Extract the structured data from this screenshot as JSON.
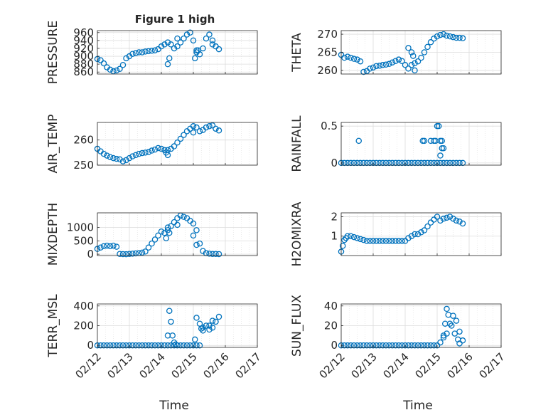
{
  "figure": {
    "title": "Figure 1 high",
    "xtick_labels": [
      "02/12",
      "02/13",
      "02/14",
      "02/15",
      "02/16",
      "02/17"
    ],
    "xlabel": "Time",
    "colors": {
      "marker": "#0072BD",
      "axis": "#262626",
      "grid": "#dcdcdc",
      "background": "#ffffff"
    }
  },
  "chart_data": [
    {
      "type": "scatter",
      "ylabel": "PRESSURE",
      "ylim": [
        855,
        965
      ],
      "yticks": [
        860,
        880,
        900,
        920,
        940,
        960
      ],
      "xlim": [
        0,
        5
      ],
      "minor_x_grid": true,
      "grid": true,
      "x": [
        0,
        0.1,
        0.2,
        0.3,
        0.4,
        0.5,
        0.6,
        0.7,
        0.8,
        0.9,
        1.0,
        1.1,
        1.2,
        1.3,
        1.4,
        1.5,
        1.6,
        1.7,
        1.8,
        1.9,
        2.0,
        2.1,
        2.2,
        2.3,
        2.4,
        2.5,
        2.6,
        2.7,
        2.8,
        2.9,
        3.0,
        3.1,
        3.2,
        3.3,
        3.4,
        3.5,
        3.6,
        3.7,
        3.8
      ],
      "y": [
        893,
        890,
        882,
        872,
        866,
        862,
        864,
        868,
        878,
        895,
        900,
        906,
        908,
        910,
        910,
        912,
        913,
        914,
        915,
        918,
        925,
        930,
        935,
        930,
        920,
        925,
        935,
        945,
        955,
        960,
        940,
        915,
        905,
        920,
        945,
        955,
        940,
        925,
        918
      ],
      "extra_points": {
        "x": [
          2.2,
          2.25,
          2.5,
          3.05,
          3.1,
          3.15,
          3.6
        ],
        "y": [
          880,
          895,
          945,
          895,
          910,
          915,
          930
        ]
      }
    },
    {
      "type": "scatter",
      "ylabel": "THETA",
      "ylim": [
        259,
        271
      ],
      "yticks": [
        260,
        265,
        270
      ],
      "xlim": [
        0,
        5
      ],
      "minor_x_grid": true,
      "grid": true,
      "x": [
        0,
        0.1,
        0.2,
        0.3,
        0.4,
        0.5,
        0.6,
        0.7,
        0.8,
        0.9,
        1.0,
        1.1,
        1.2,
        1.3,
        1.4,
        1.5,
        1.6,
        1.7,
        1.8,
        1.9,
        2.0,
        2.1,
        2.2,
        2.3,
        2.4,
        2.5,
        2.6,
        2.7,
        2.8,
        2.9,
        3.0,
        3.1,
        3.2,
        3.3,
        3.4,
        3.5,
        3.6,
        3.7,
        3.8
      ],
      "y": [
        264.3,
        263.5,
        263.8,
        263.5,
        263.2,
        263.0,
        262.5,
        259.6,
        259.8,
        260.5,
        260.8,
        261.2,
        261.3,
        261.5,
        261.6,
        261.8,
        262.2,
        262.6,
        263.0,
        262.6,
        261.5,
        260.5,
        261.5,
        262.0,
        262.5,
        263.5,
        265.0,
        266.5,
        267.8,
        268.8,
        269.4,
        269.8,
        270.0,
        269.6,
        269.4,
        269.2,
        269.0,
        269.0,
        268.9
      ],
      "extra_points": {
        "x": [
          2.1,
          2.2,
          2.25,
          2.3
        ],
        "y": [
          266.2,
          265.0,
          264.0,
          260.0
        ]
      }
    },
    {
      "type": "scatter",
      "ylabel": "AIR_TEMP",
      "ylim": [
        250,
        267
      ],
      "yticks": [
        250,
        260
      ],
      "xlim": [
        0,
        5
      ],
      "minor_x_grid": true,
      "grid": true,
      "x": [
        0,
        0.1,
        0.2,
        0.3,
        0.4,
        0.5,
        0.6,
        0.7,
        0.8,
        0.9,
        1.0,
        1.1,
        1.2,
        1.3,
        1.4,
        1.5,
        1.6,
        1.7,
        1.8,
        1.9,
        2.0,
        2.1,
        2.2,
        2.3,
        2.4,
        2.5,
        2.6,
        2.7,
        2.8,
        2.9,
        3.0,
        3.1,
        3.2,
        3.3,
        3.4,
        3.5,
        3.6,
        3.7,
        3.8
      ],
      "y": [
        256.5,
        255.5,
        254.5,
        253.8,
        253.2,
        252.8,
        252.5,
        252.3,
        251.5,
        252.0,
        252.8,
        253.5,
        254.0,
        254.5,
        254.8,
        255.0,
        255.2,
        255.8,
        256.2,
        256.8,
        256.5,
        256.0,
        256.0,
        256.5,
        257.5,
        259.0,
        260.5,
        262.0,
        263.5,
        264.5,
        265.5,
        265.0,
        263.5,
        264.0,
        265.0,
        265.5,
        265.8,
        264.5,
        263.8
      ],
      "extra_points": {
        "x": [
          2.15,
          2.2,
          3.0
        ],
        "y": [
          255.0,
          254.0,
          263.0
        ]
      }
    },
    {
      "type": "scatter",
      "ylabel": "RAINFALL",
      "ylim": [
        -0.03,
        0.55
      ],
      "yticks": [
        0,
        0.5
      ],
      "xlim": [
        0,
        5
      ],
      "minor_x_grid": true,
      "grid": true,
      "x": [
        0,
        0.1,
        0.2,
        0.3,
        0.4,
        0.5,
        0.6,
        0.7,
        0.8,
        0.9,
        1.0,
        1.1,
        1.2,
        1.3,
        1.4,
        1.5,
        1.6,
        1.7,
        1.8,
        1.9,
        2.0,
        2.1,
        2.2,
        2.3,
        2.4,
        2.5,
        2.6,
        2.7,
        2.8,
        2.9,
        3.0,
        3.1,
        3.2,
        3.3,
        3.4,
        3.5,
        3.6,
        3.7,
        3.8
      ],
      "y": [
        0,
        0,
        0,
        0,
        0,
        0,
        0,
        0,
        0,
        0,
        0,
        0,
        0,
        0,
        0,
        0,
        0,
        0,
        0,
        0,
        0,
        0,
        0,
        0,
        0,
        0,
        0,
        0,
        0,
        0,
        0,
        0,
        0,
        0,
        0,
        0,
        0,
        0,
        0
      ],
      "extra_points": {
        "x": [
          0.55,
          2.55,
          2.6,
          2.8,
          2.9,
          2.95,
          3.0,
          3.05,
          3.1,
          3.15,
          3.2,
          3.1,
          3.15
        ],
        "y": [
          0.3,
          0.3,
          0.3,
          0.3,
          0.3,
          0.3,
          0.5,
          0.5,
          0.3,
          0.2,
          0.2,
          0.1,
          0.3
        ]
      }
    },
    {
      "type": "scatter",
      "ylabel": "MIXDEPTH",
      "ylim": [
        -50,
        1550
      ],
      "yticks": [
        0,
        500,
        1000
      ],
      "xlim": [
        0,
        5
      ],
      "minor_x_grid": true,
      "grid": true,
      "x": [
        0,
        0.1,
        0.2,
        0.3,
        0.4,
        0.5,
        0.6,
        0.7,
        0.8,
        0.9,
        1.0,
        1.1,
        1.2,
        1.3,
        1.4,
        1.5,
        1.6,
        1.7,
        1.8,
        1.9,
        2.0,
        2.1,
        2.2,
        2.3,
        2.4,
        2.5,
        2.6,
        2.7,
        2.8,
        2.9,
        3.0,
        3.1,
        3.2,
        3.3,
        3.4,
        3.5,
        3.6,
        3.7,
        3.8
      ],
      "y": [
        200,
        250,
        300,
        320,
        300,
        320,
        280,
        10,
        5,
        0,
        10,
        20,
        30,
        40,
        60,
        100,
        250,
        400,
        550,
        700,
        850,
        800,
        900,
        1050,
        1200,
        1350,
        1450,
        1400,
        1350,
        1250,
        1150,
        900,
        400,
        120,
        40,
        20,
        10,
        10,
        5
      ],
      "extra_points": {
        "x": [
          2.15,
          2.2,
          2.25,
          2.5,
          3.0,
          3.1
        ],
        "y": [
          600,
          1000,
          800,
          1100,
          700,
          350
        ]
      }
    },
    {
      "type": "scatter",
      "ylabel": "H2OMIXRA",
      "ylim": [
        0,
        2.2
      ],
      "yticks": [
        1,
        2
      ],
      "xlim": [
        0,
        5
      ],
      "minor_x_grid": true,
      "grid": true,
      "x": [
        0,
        0.05,
        0.1,
        0.15,
        0.2,
        0.3,
        0.4,
        0.5,
        0.6,
        0.7,
        0.8,
        0.9,
        1.0,
        1.1,
        1.2,
        1.3,
        1.4,
        1.5,
        1.6,
        1.7,
        1.8,
        1.9,
        2.0,
        2.1,
        2.2,
        2.3,
        2.4,
        2.5,
        2.6,
        2.7,
        2.8,
        2.9,
        3.0,
        3.1,
        3.2,
        3.3,
        3.4,
        3.5,
        3.6,
        3.7,
        3.8
      ],
      "y": [
        0.2,
        0.5,
        0.8,
        0.9,
        1.0,
        1.0,
        0.95,
        0.9,
        0.85,
        0.8,
        0.75,
        0.75,
        0.75,
        0.75,
        0.75,
        0.75,
        0.75,
        0.75,
        0.75,
        0.75,
        0.75,
        0.75,
        0.75,
        0.9,
        1.0,
        1.1,
        1.1,
        1.2,
        1.3,
        1.5,
        1.7,
        1.85,
        2.0,
        1.8,
        1.9,
        1.95,
        2.0,
        1.9,
        1.8,
        1.75,
        1.65
      ],
      "extra_points": {
        "x": [],
        "y": []
      }
    },
    {
      "type": "scatter",
      "ylabel": "TERR_MSL",
      "ylim": [
        -20,
        420
      ],
      "yticks": [
        0,
        200,
        400
      ],
      "xlim": [
        0,
        5
      ],
      "minor_x_grid": true,
      "grid": true,
      "x": [
        0,
        0.1,
        0.2,
        0.3,
        0.4,
        0.5,
        0.6,
        0.7,
        0.8,
        0.9,
        1.0,
        1.1,
        1.2,
        1.3,
        1.4,
        1.5,
        1.6,
        1.7,
        1.8,
        1.9,
        2.0,
        2.1,
        2.2,
        2.3,
        2.4,
        2.5,
        2.6,
        2.7,
        2.8,
        2.9,
        3.0,
        3.1,
        3.2,
        3.3,
        3.4,
        3.5,
        3.6,
        3.7,
        3.8
      ],
      "y": [
        0,
        0,
        0,
        0,
        0,
        0,
        0,
        0,
        0,
        0,
        0,
        0,
        0,
        0,
        0,
        0,
        0,
        0,
        0,
        0,
        0,
        0,
        0,
        0,
        0,
        0,
        0,
        0,
        0,
        0,
        0,
        0,
        0,
        150,
        200,
        160,
        180,
        240,
        290
      ],
      "extra_points": {
        "x": [
          2.2,
          2.25,
          2.3,
          2.35,
          2.4,
          2.45,
          3.05,
          3.1,
          3.2,
          3.25,
          3.3,
          3.5,
          3.6
        ],
        "y": [
          100,
          350,
          240,
          100,
          30,
          10,
          60,
          280,
          220,
          170,
          180,
          200,
          250
        ]
      }
    },
    {
      "type": "scatter",
      "ylabel": "SUN_FLUX",
      "ylim": [
        -2,
        42
      ],
      "yticks": [
        0,
        20,
        40
      ],
      "xlim": [
        0,
        5
      ],
      "minor_x_grid": true,
      "grid": true,
      "x": [
        0,
        0.1,
        0.2,
        0.3,
        0.4,
        0.5,
        0.6,
        0.7,
        0.8,
        0.9,
        1.0,
        1.1,
        1.2,
        1.3,
        1.4,
        1.5,
        1.6,
        1.7,
        1.8,
        1.9,
        2.0,
        2.1,
        2.2,
        2.3,
        2.4,
        2.5,
        2.6,
        2.7,
        2.8,
        2.9,
        3.0,
        3.1,
        3.2,
        3.3,
        3.4,
        3.5,
        3.6,
        3.7,
        3.8
      ],
      "y": [
        0,
        0,
        0,
        0,
        0,
        0,
        0,
        0,
        0,
        0,
        0,
        0,
        0,
        0,
        0,
        0,
        0,
        0,
        0,
        0,
        0,
        0,
        0,
        0,
        0,
        0,
        0,
        0,
        0,
        0,
        0,
        3,
        8,
        12,
        22,
        30,
        25,
        14,
        5
      ],
      "extra_points": {
        "x": [
          3.2,
          3.25,
          3.3,
          3.35,
          3.45,
          3.55,
          3.65,
          3.7
        ],
        "y": [
          10,
          22,
          37,
          31,
          20,
          12,
          6,
          2
        ]
      }
    }
  ]
}
